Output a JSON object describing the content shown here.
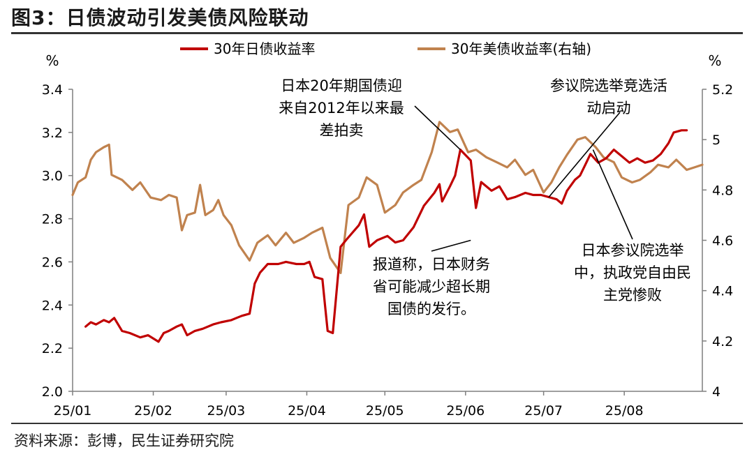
{
  "figure": {
    "title": "图3：日债波动引发美债风险联动",
    "source": "资料来源：彭博，民生证券研究院"
  },
  "chart_data": {
    "type": "line",
    "title": "图3：日债波动引发美债风险联动",
    "left_unit": "%",
    "right_unit": "%",
    "ylim_left": [
      2.0,
      3.4
    ],
    "ylim_right": [
      4.0,
      5.2
    ],
    "yticks_left": [
      "2.0",
      "2.2",
      "2.4",
      "2.6",
      "2.8",
      "3.0",
      "3.2",
      "3.4"
    ],
    "yticks_right": [
      "4",
      "4.2",
      "4.4",
      "4.6",
      "4.8",
      "5",
      "5.2"
    ],
    "x_tick_labels": [
      "25/01",
      "25/02",
      "25/03",
      "25/04",
      "25/05",
      "25/06",
      "25/07",
      "25/08"
    ],
    "x_tick_dates": [
      "2025-01-01",
      "2025-02-01",
      "2025-03-01",
      "2025-04-01",
      "2025-05-01",
      "2025-06-01",
      "2025-07-01",
      "2025-08-01"
    ],
    "x_range": [
      "2025-01-01",
      "2025-08-31"
    ],
    "grid": false,
    "legend_position": "top-center",
    "series": [
      {
        "name": "30年日债收益率",
        "axis": "left",
        "color": "#C00000",
        "points": [
          [
            "2025-01-06",
            2.3
          ],
          [
            "2025-01-08",
            2.32
          ],
          [
            "2025-01-10",
            2.31
          ],
          [
            "2025-01-13",
            2.33
          ],
          [
            "2025-01-15",
            2.32
          ],
          [
            "2025-01-17",
            2.34
          ],
          [
            "2025-01-20",
            2.28
          ],
          [
            "2025-01-23",
            2.27
          ],
          [
            "2025-01-27",
            2.25
          ],
          [
            "2025-01-30",
            2.26
          ],
          [
            "2025-02-03",
            2.23
          ],
          [
            "2025-02-05",
            2.27
          ],
          [
            "2025-02-07",
            2.28
          ],
          [
            "2025-02-10",
            2.3
          ],
          [
            "2025-02-12",
            2.31
          ],
          [
            "2025-02-14",
            2.26
          ],
          [
            "2025-02-17",
            2.28
          ],
          [
            "2025-02-20",
            2.29
          ],
          [
            "2025-02-24",
            2.31
          ],
          [
            "2025-02-27",
            2.32
          ],
          [
            "2025-03-03",
            2.33
          ],
          [
            "2025-03-05",
            2.34
          ],
          [
            "2025-03-07",
            2.35
          ],
          [
            "2025-03-10",
            2.36
          ],
          [
            "2025-03-12",
            2.5
          ],
          [
            "2025-03-14",
            2.55
          ],
          [
            "2025-03-17",
            2.59
          ],
          [
            "2025-03-21",
            2.59
          ],
          [
            "2025-03-24",
            2.6
          ],
          [
            "2025-03-28",
            2.59
          ],
          [
            "2025-03-31",
            2.59
          ],
          [
            "2025-04-02",
            2.6
          ],
          [
            "2025-04-04",
            2.53
          ],
          [
            "2025-04-07",
            2.52
          ],
          [
            "2025-04-08",
            2.4
          ],
          [
            "2025-04-09",
            2.28
          ],
          [
            "2025-04-11",
            2.27
          ],
          [
            "2025-04-14",
            2.67
          ],
          [
            "2025-04-16",
            2.7
          ],
          [
            "2025-04-21",
            2.77
          ],
          [
            "2025-04-23",
            2.82
          ],
          [
            "2025-04-25",
            2.67
          ],
          [
            "2025-04-28",
            2.7
          ],
          [
            "2025-05-02",
            2.72
          ],
          [
            "2025-05-05",
            2.69
          ],
          [
            "2025-05-08",
            2.7
          ],
          [
            "2025-05-12",
            2.76
          ],
          [
            "2025-05-16",
            2.86
          ],
          [
            "2025-05-20",
            2.92
          ],
          [
            "2025-05-22",
            2.96
          ],
          [
            "2025-05-23",
            2.88
          ],
          [
            "2025-05-26",
            2.95
          ],
          [
            "2025-05-28",
            3.0
          ],
          [
            "2025-05-30",
            3.12
          ],
          [
            "2025-06-03",
            3.07
          ],
          [
            "2025-06-05",
            2.85
          ],
          [
            "2025-06-07",
            2.97
          ],
          [
            "2025-06-11",
            2.93
          ],
          [
            "2025-06-14",
            2.95
          ],
          [
            "2025-06-17",
            2.89
          ],
          [
            "2025-06-20",
            2.9
          ],
          [
            "2025-06-24",
            2.92
          ],
          [
            "2025-06-27",
            2.91
          ],
          [
            "2025-06-30",
            2.91
          ],
          [
            "2025-07-03",
            2.9
          ],
          [
            "2025-07-06",
            2.89
          ],
          [
            "2025-07-08",
            2.87
          ],
          [
            "2025-07-10",
            2.93
          ],
          [
            "2025-07-13",
            2.98
          ],
          [
            "2025-07-15",
            3.0
          ],
          [
            "2025-07-17",
            3.05
          ],
          [
            "2025-07-19",
            3.1
          ],
          [
            "2025-07-22",
            3.06
          ],
          [
            "2025-07-25",
            3.08
          ],
          [
            "2025-07-28",
            3.12
          ],
          [
            "2025-07-31",
            3.09
          ],
          [
            "2025-08-03",
            3.06
          ],
          [
            "2025-08-06",
            3.08
          ],
          [
            "2025-08-09",
            3.06
          ],
          [
            "2025-08-12",
            3.07
          ],
          [
            "2025-08-15",
            3.1
          ],
          [
            "2025-08-18",
            3.15
          ],
          [
            "2025-08-20",
            3.2
          ],
          [
            "2025-08-23",
            3.21
          ],
          [
            "2025-08-25",
            3.21
          ]
        ]
      },
      {
        "name": "30年美债收益率(右轴)",
        "axis": "right",
        "color": "#C0824E",
        "points": [
          [
            "2025-01-01",
            4.78
          ],
          [
            "2025-01-03",
            4.83
          ],
          [
            "2025-01-06",
            4.85
          ],
          [
            "2025-01-08",
            4.92
          ],
          [
            "2025-01-10",
            4.95
          ],
          [
            "2025-01-13",
            4.97
          ],
          [
            "2025-01-15",
            4.98
          ],
          [
            "2025-01-16",
            4.86
          ],
          [
            "2025-01-20",
            4.84
          ],
          [
            "2025-01-24",
            4.8
          ],
          [
            "2025-01-27",
            4.83
          ],
          [
            "2025-01-31",
            4.77
          ],
          [
            "2025-02-04",
            4.76
          ],
          [
            "2025-02-07",
            4.78
          ],
          [
            "2025-02-10",
            4.77
          ],
          [
            "2025-02-12",
            4.64
          ],
          [
            "2025-02-14",
            4.7
          ],
          [
            "2025-02-17",
            4.71
          ],
          [
            "2025-02-19",
            4.82
          ],
          [
            "2025-02-21",
            4.7
          ],
          [
            "2025-02-24",
            4.72
          ],
          [
            "2025-02-26",
            4.76
          ],
          [
            "2025-02-28",
            4.7
          ],
          [
            "2025-03-03",
            4.66
          ],
          [
            "2025-03-06",
            4.58
          ],
          [
            "2025-03-10",
            4.52
          ],
          [
            "2025-03-13",
            4.59
          ],
          [
            "2025-03-17",
            4.62
          ],
          [
            "2025-03-20",
            4.58
          ],
          [
            "2025-03-24",
            4.63
          ],
          [
            "2025-03-27",
            4.59
          ],
          [
            "2025-03-31",
            4.61
          ],
          [
            "2025-04-03",
            4.63
          ],
          [
            "2025-04-07",
            4.65
          ],
          [
            "2025-04-10",
            4.53
          ],
          [
            "2025-04-14",
            4.47
          ],
          [
            "2025-04-17",
            4.74
          ],
          [
            "2025-04-21",
            4.77
          ],
          [
            "2025-04-24",
            4.85
          ],
          [
            "2025-04-28",
            4.82
          ],
          [
            "2025-05-01",
            4.71
          ],
          [
            "2025-05-05",
            4.74
          ],
          [
            "2025-05-08",
            4.79
          ],
          [
            "2025-05-12",
            4.82
          ],
          [
            "2025-05-15",
            4.84
          ],
          [
            "2025-05-19",
            4.95
          ],
          [
            "2025-05-22",
            5.07
          ],
          [
            "2025-05-26",
            5.03
          ],
          [
            "2025-05-29",
            5.04
          ],
          [
            "2025-06-02",
            4.95
          ],
          [
            "2025-06-05",
            4.96
          ],
          [
            "2025-06-09",
            4.93
          ],
          [
            "2025-06-13",
            4.91
          ],
          [
            "2025-06-17",
            4.89
          ],
          [
            "2025-06-20",
            4.92
          ],
          [
            "2025-06-24",
            4.86
          ],
          [
            "2025-06-27",
            4.88
          ],
          [
            "2025-07-01",
            4.79
          ],
          [
            "2025-07-04",
            4.83
          ],
          [
            "2025-07-07",
            4.89
          ],
          [
            "2025-07-10",
            4.94
          ],
          [
            "2025-07-14",
            5.0
          ],
          [
            "2025-07-17",
            5.01
          ],
          [
            "2025-07-21",
            4.97
          ],
          [
            "2025-07-24",
            4.93
          ],
          [
            "2025-07-28",
            4.91
          ],
          [
            "2025-07-31",
            4.85
          ],
          [
            "2025-08-04",
            4.83
          ],
          [
            "2025-08-07",
            4.84
          ],
          [
            "2025-08-11",
            4.87
          ],
          [
            "2025-08-14",
            4.9
          ],
          [
            "2025-08-18",
            4.89
          ],
          [
            "2025-08-21",
            4.92
          ],
          [
            "2025-08-25",
            4.88
          ],
          [
            "2025-08-28",
            4.89
          ],
          [
            "2025-08-31",
            4.9
          ]
        ]
      }
    ],
    "annotations": [
      {
        "id": "ann-jgb20",
        "lines": [
          "日本20年期国债迎",
          "来自2012年以来最",
          "差拍卖"
        ],
        "date": "2025-05-30",
        "value": 3.12,
        "axis": "left"
      },
      {
        "id": "ann-mof",
        "lines": [
          "报道称，日本财务",
          "省可能减少超长期",
          "国债的发行。"
        ],
        "date": "2025-06-03",
        "value": 2.7,
        "axis": "left"
      },
      {
        "id": "ann-election-start",
        "lines": [
          "参议院选举竞选活",
          "动启动"
        ],
        "date": "2025-07-03",
        "value": 2.9,
        "axis": "left"
      },
      {
        "id": "ann-election-result",
        "lines": [
          "日本参议院选举",
          "中，执政党自由民",
          "主党惨败"
        ],
        "date": "2025-07-20",
        "value": 3.12,
        "axis": "left"
      }
    ]
  }
}
